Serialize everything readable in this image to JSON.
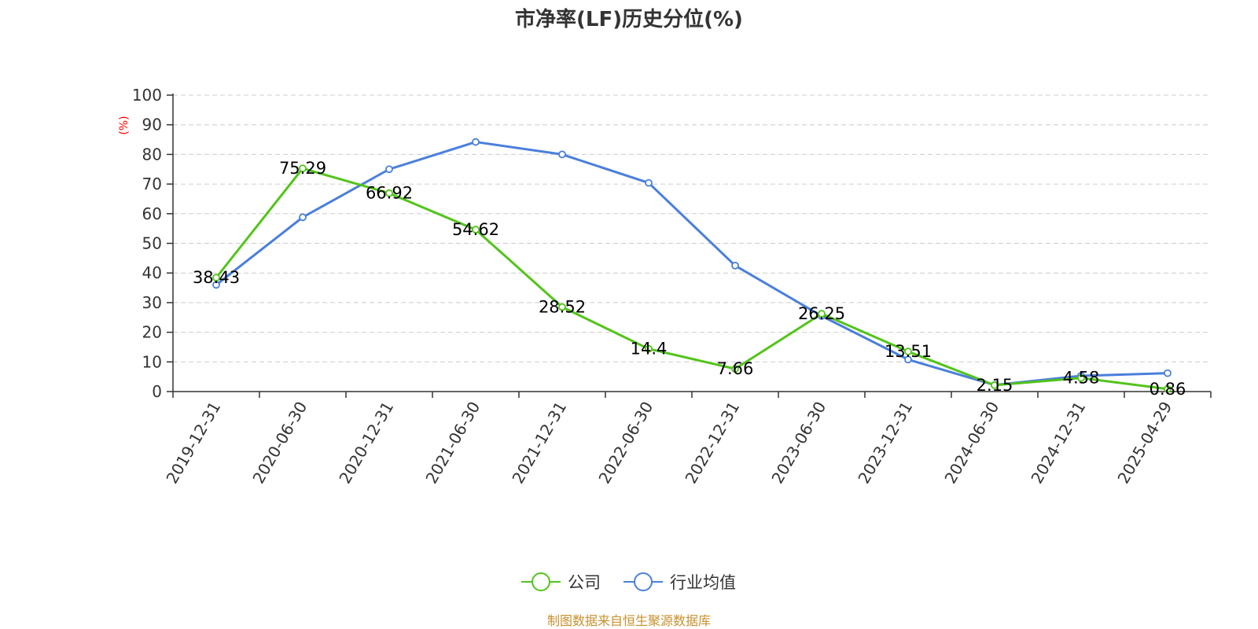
{
  "chart_data": {
    "type": "line",
    "title": "市净率(LF)历史分位(%)",
    "ylabel": "(%)",
    "xlabel": "",
    "ylim": [
      0,
      100
    ],
    "yticks": [
      0,
      10,
      20,
      30,
      40,
      50,
      60,
      70,
      80,
      90,
      100
    ],
    "categories": [
      "2019-12-31",
      "2020-06-30",
      "2020-12-31",
      "2021-06-30",
      "2021-12-31",
      "2022-06-30",
      "2022-12-31",
      "2023-06-30",
      "2023-12-31",
      "2024-06-30",
      "2024-12-31",
      "2025-04-29"
    ],
    "grid": true,
    "legend_position": "bottom",
    "series": [
      {
        "name": "公司",
        "color": "#52c41a",
        "values": [
          38.43,
          75.29,
          66.92,
          54.62,
          28.52,
          14.4,
          7.66,
          26.25,
          13.51,
          2.15,
          4.58,
          0.86
        ],
        "labels": [
          "38.43",
          "75.29",
          "66.92",
          "54.62",
          "28.52",
          "14.4",
          "7.66",
          "26.25",
          "13.51",
          "2.15",
          "4.58",
          "0.86"
        ]
      },
      {
        "name": "行业均值",
        "color": "#4a7fdc",
        "values": [
          36,
          58.8,
          75,
          84.2,
          80,
          70.4,
          42.5,
          25.5,
          10.8,
          2.2,
          5.3,
          6.2
        ]
      }
    ]
  },
  "source": "制图数据来自恒生聚源数据库"
}
